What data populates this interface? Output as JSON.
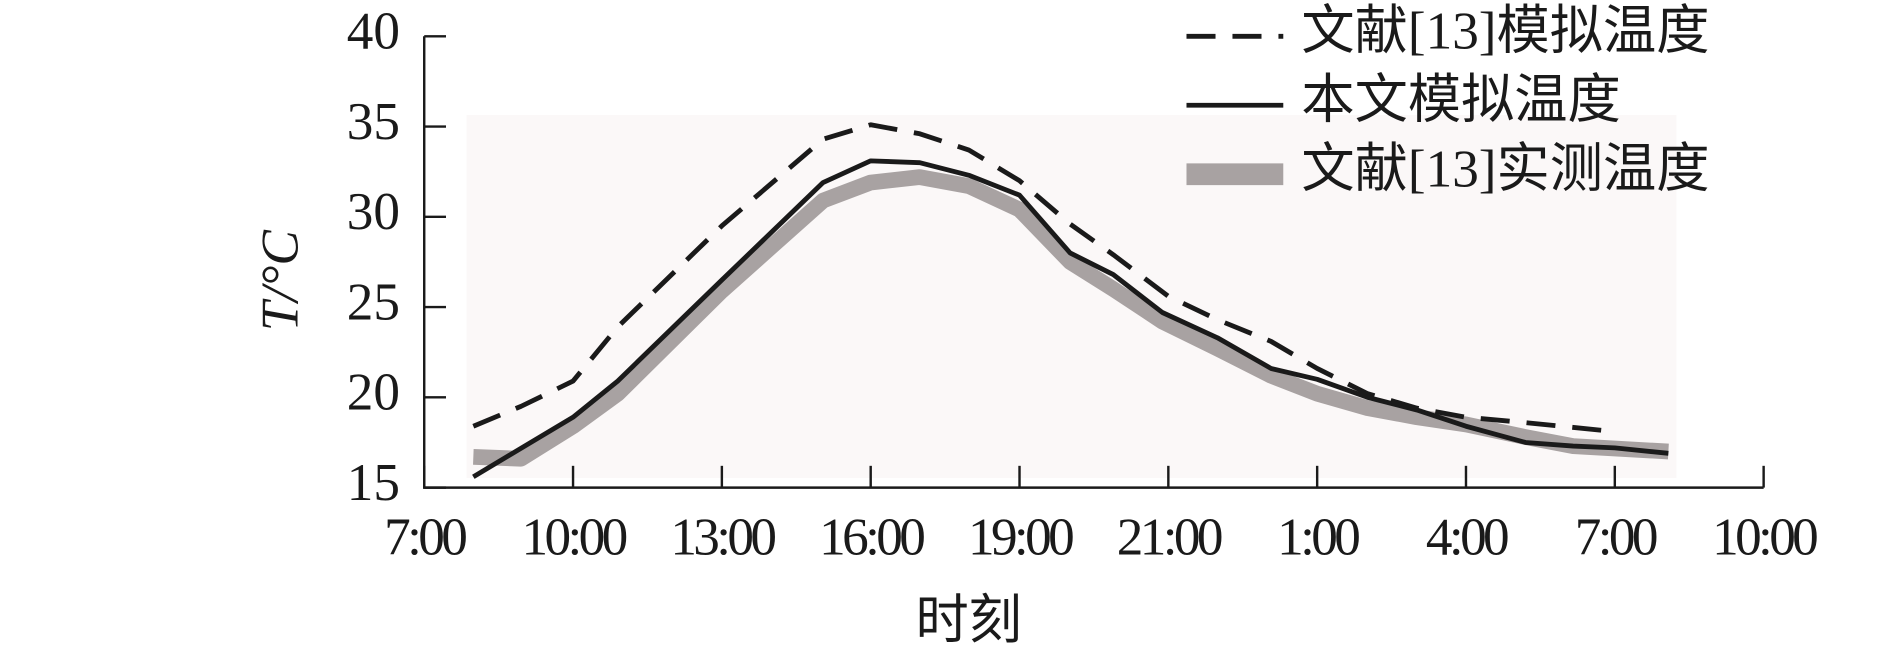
{
  "chart_data": {
    "type": "line",
    "x_label": "时刻",
    "y_label": "T/°C",
    "xlim": [
      0,
      9
    ],
    "xticks": [
      {
        "value": 0,
        "label": "7:00"
      },
      {
        "value": 1,
        "label": "10:00"
      },
      {
        "value": 2,
        "label": "13:00"
      },
      {
        "value": 3,
        "label": "16:00"
      },
      {
        "value": 4,
        "label": "19:00"
      },
      {
        "value": 5,
        "label": "21:00"
      },
      {
        "value": 6,
        "label": "1:00"
      },
      {
        "value": 7,
        "label": "4:00"
      },
      {
        "value": 8,
        "label": "7:00"
      },
      {
        "value": 9,
        "label": "10:00"
      }
    ],
    "ylim": [
      15,
      40
    ],
    "yticks": [
      15,
      20,
      25,
      30,
      35,
      40
    ],
    "legend": "top-right",
    "series": [
      {
        "name": "文献[13]模拟温度",
        "color": "#1a1a1a",
        "style": "dashed",
        "x": [
          0.33,
          0.65,
          1.0,
          1.3,
          2.0,
          2.68,
          3.0,
          3.33,
          3.66,
          4.0,
          4.34,
          4.63,
          5.0,
          5.33,
          5.69,
          6.0,
          6.34,
          6.67,
          7.0,
          7.4,
          8.0
        ],
        "values": [
          18.4,
          19.5,
          20.9,
          23.9,
          29.5,
          34.3,
          35.1,
          34.6,
          33.7,
          32.0,
          29.6,
          27.9,
          25.6,
          24.3,
          23.1,
          21.6,
          20.2,
          19.4,
          18.9,
          18.6,
          18.1
        ]
      },
      {
        "name": "本文模拟温度",
        "color": "#1a1a1a",
        "style": "solid",
        "x": [
          0.33,
          1.0,
          1.3,
          2.0,
          2.68,
          3.0,
          3.33,
          3.66,
          4.0,
          4.34,
          4.63,
          4.96,
          5.33,
          5.69,
          6.0,
          6.34,
          6.67,
          7.0,
          7.4,
          7.72,
          8.0,
          8.36
        ],
        "values": [
          15.6,
          18.9,
          20.9,
          26.5,
          31.9,
          33.1,
          33.0,
          32.3,
          31.2,
          28.0,
          26.8,
          24.7,
          23.3,
          21.6,
          21.0,
          20.0,
          19.3,
          18.4,
          17.5,
          17.3,
          17.2,
          16.9
        ]
      },
      {
        "name": "文献[13]实测温度",
        "color": "#a8a2a2",
        "style": "thick",
        "x": [
          0.33,
          0.65,
          1.0,
          1.3,
          2.0,
          2.68,
          3.0,
          3.33,
          3.66,
          4.0,
          4.34,
          4.63,
          4.96,
          5.33,
          5.69,
          6.0,
          6.34,
          6.67,
          7.0,
          7.4,
          7.72,
          8.36
        ],
        "values": [
          16.7,
          16.6,
          18.4,
          20.2,
          25.9,
          30.9,
          31.9,
          32.2,
          31.7,
          30.4,
          27.5,
          26.0,
          24.2,
          22.7,
          21.2,
          20.2,
          19.4,
          18.9,
          18.5,
          17.8,
          17.3,
          17.0
        ]
      }
    ]
  }
}
